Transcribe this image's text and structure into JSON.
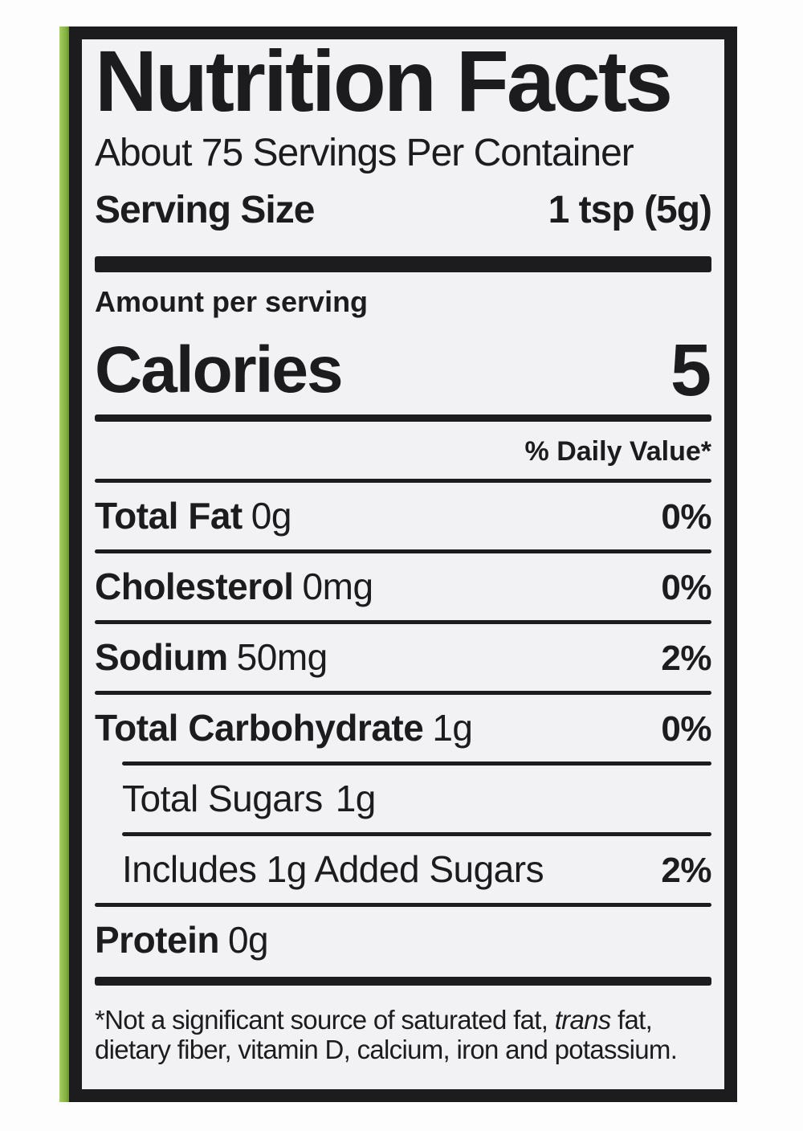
{
  "label": {
    "title": "Nutrition Facts",
    "servings_per_container": "About 75 Servings Per Container",
    "serving_size_label": "Serving Size",
    "serving_size_value": "1 tsp (5g)",
    "amount_per_serving": "Amount per serving",
    "calories_label": "Calories",
    "calories_value": "5",
    "daily_value_header": "% Daily Value*",
    "nutrients": [
      {
        "name": "Total Fat",
        "amount": "0g",
        "dv": "0%"
      },
      {
        "name": "Cholesterol",
        "amount": "0mg",
        "dv": "0%"
      },
      {
        "name": "Sodium",
        "amount": "50mg",
        "dv": "2%"
      },
      {
        "name": "Total Carbohydrate",
        "amount": "1g",
        "dv": "0%"
      },
      {
        "name": "Total Sugars",
        "amount": "1g",
        "dv": ""
      },
      {
        "name": "Includes 1g Added Sugars",
        "amount": "",
        "dv": "2%"
      },
      {
        "name": "Protein",
        "amount": "0g",
        "dv": ""
      }
    ],
    "footnote": {
      "line1_pre": "*Not a significant source of saturated fat, ",
      "line1_italic": "trans",
      "line1_post": " fat,",
      "line2": "dietary fiber, vitamin D, calcium, iron and potassium."
    },
    "colors": {
      "accent_green": "#7fae3d",
      "accent_green_light": "#a6cf62",
      "ink": "#1c1c1e",
      "label_bg": "#f2f2f4"
    }
  }
}
